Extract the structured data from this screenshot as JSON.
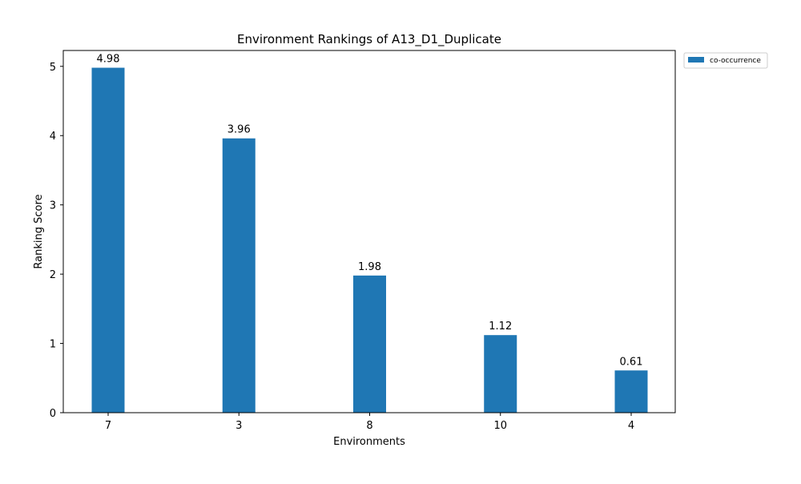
{
  "chart_data": {
    "type": "bar",
    "title": "Environment Rankings of A13_D1_Duplicate",
    "xlabel": "Environments",
    "ylabel": "Ranking Score",
    "categories": [
      "7",
      "3",
      "8",
      "10",
      "4"
    ],
    "series": [
      {
        "name": "co-occurrence",
        "color": "#1f77b4",
        "values": [
          4.98,
          3.96,
          1.98,
          1.12,
          0.61
        ],
        "labels": [
          "4.98",
          "3.96",
          "1.98",
          "1.12",
          "0.61"
        ]
      }
    ],
    "ylim": [
      0,
      5.229
    ],
    "yticks": [
      0,
      1,
      2,
      3,
      4,
      5
    ],
    "ytick_labels": [
      "0",
      "1",
      "2",
      "3",
      "4",
      "5"
    ],
    "grid": false,
    "legend": {
      "position": "outside-top-right"
    }
  }
}
